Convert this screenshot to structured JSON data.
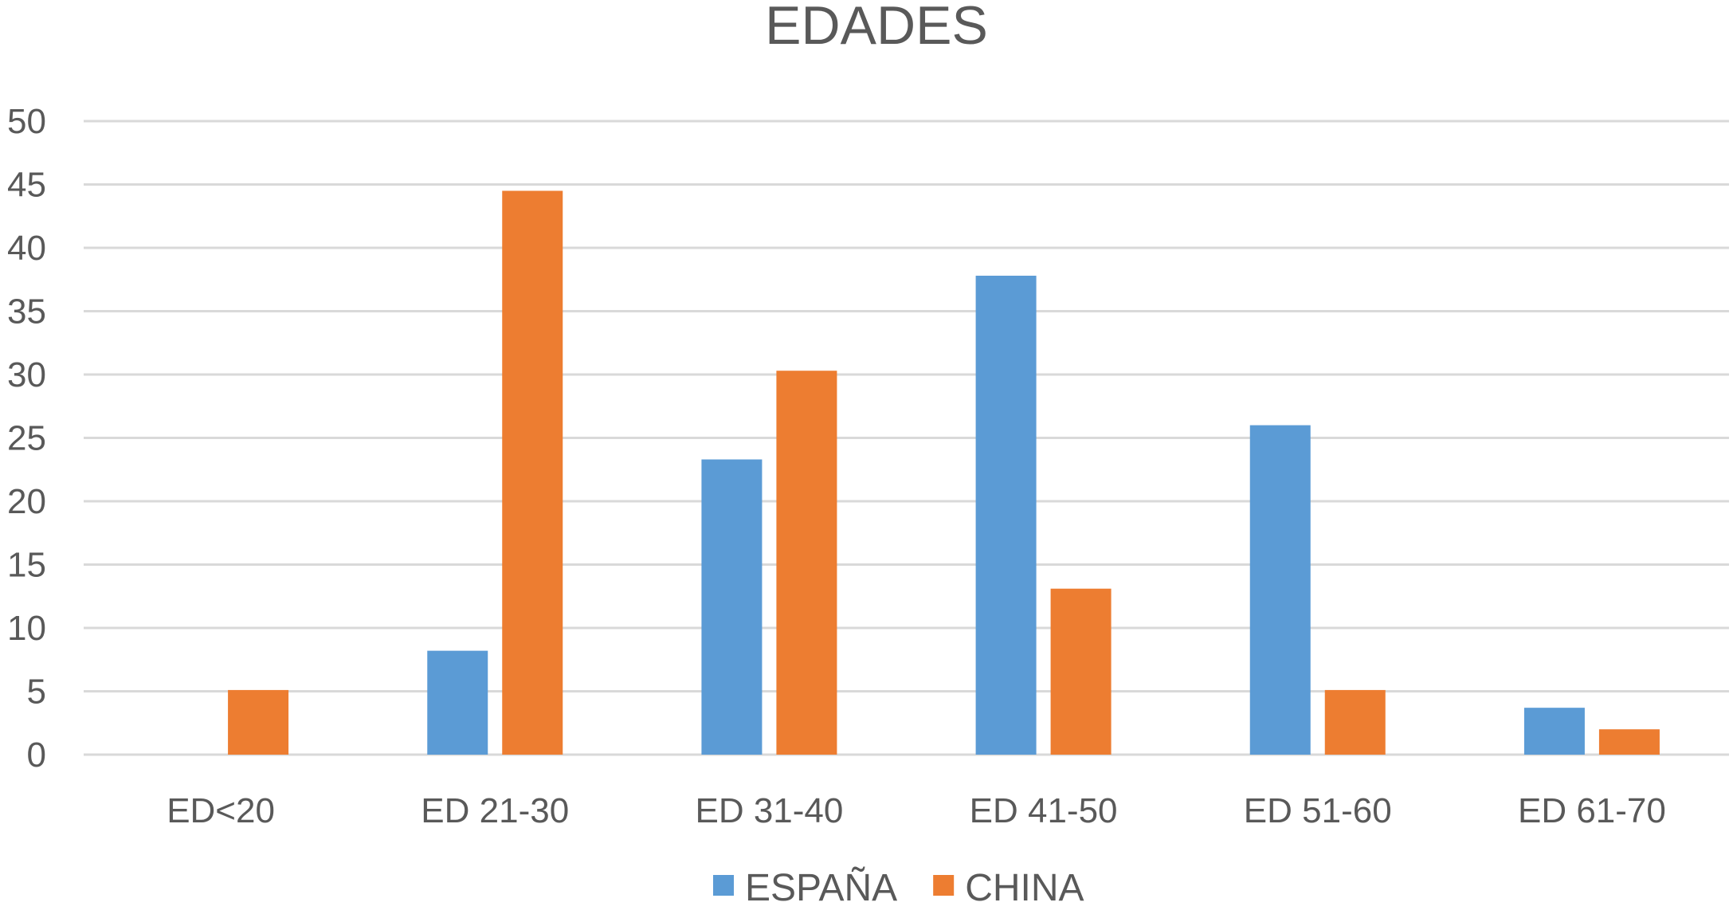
{
  "chart_data": {
    "type": "bar",
    "title": "EDADES",
    "xlabel": "",
    "ylabel": "",
    "ylim": [
      0,
      50
    ],
    "yticks": [
      0,
      5,
      10,
      15,
      20,
      25,
      30,
      35,
      40,
      45,
      50
    ],
    "grid": true,
    "legend": "bottom",
    "categories": [
      "ED<20",
      "ED 21-30",
      "ED 31-40",
      "ED 41-50",
      "ED 51-60",
      "ED 61-70"
    ],
    "series": [
      {
        "name": "ESPAÑA",
        "color": "#5b9bd5",
        "values": [
          0,
          8.2,
          23.3,
          37.8,
          26,
          3.7
        ]
      },
      {
        "name": "CHINA",
        "color": "#ed7d31",
        "values": [
          5.1,
          44.5,
          30.3,
          13.1,
          5.1,
          2
        ]
      }
    ]
  }
}
